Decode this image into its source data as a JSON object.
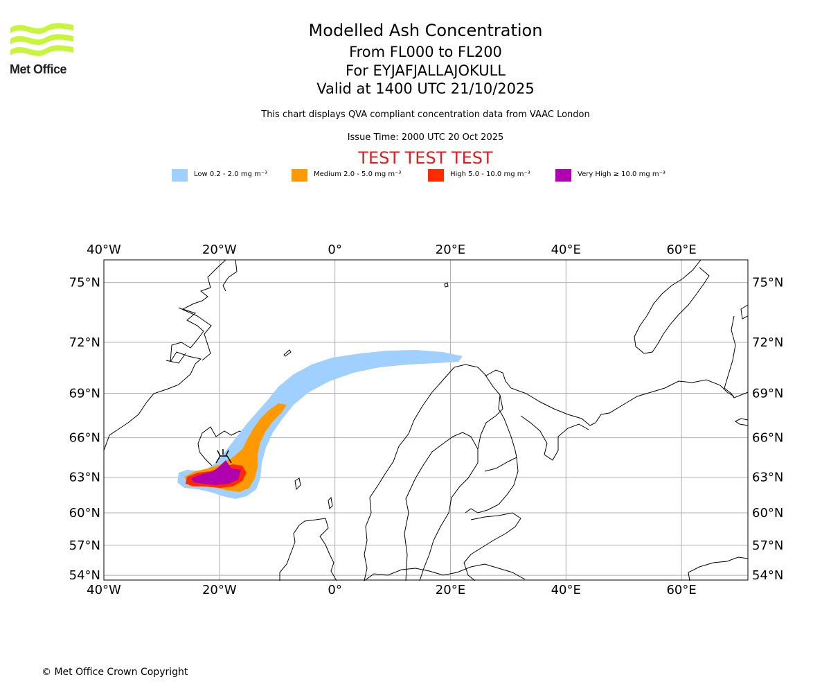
{
  "header": {
    "logo_text": "Met Office",
    "title": "Modelled Ash Concentration",
    "level_range": "From FL000 to FL200",
    "volcano": "For EYJAFJALLAJOKULL",
    "valid_time": "Valid at 1400 UTC 21/10/2025",
    "description": "This chart displays QVA compliant concentration data from VAAC London",
    "issue_time": "Issue Time: 2000 UTC 20 Oct 2025",
    "test_banner": "TEST TEST TEST"
  },
  "legend": [
    {
      "label": "Low 0.2 - 2.0 mg m⁻³",
      "color": "#a0d0ff"
    },
    {
      "label": "Medium 2.0 - 5.0 mg m⁻³",
      "color": "#ff9900"
    },
    {
      "label": "High 5.0 - 10.0 mg m⁻³",
      "color": "#ff2a00"
    },
    {
      "label": "Very High  ≥  10.0 mg m⁻³",
      "color": "#b000b0"
    }
  ],
  "map": {
    "lon_ticks": [
      "40°W",
      "20°W",
      "0°",
      "20°E",
      "40°E",
      "60°E"
    ],
    "lat_ticks": [
      "75°N",
      "72°N",
      "69°N",
      "66°N",
      "63°N",
      "60°N",
      "57°N",
      "54°N"
    ],
    "lon_values": [
      -40,
      -20,
      0,
      20,
      40,
      60
    ],
    "lat_values": [
      75,
      72,
      69,
      66,
      63,
      60,
      57,
      54
    ],
    "lon_range": [
      -40,
      71.5
    ],
    "lat_range": [
      53.5,
      76
    ],
    "gridline_color": "#b0b0b0",
    "volcano_location": {
      "lon": -19.6,
      "lat": 63.6
    }
  },
  "footer": {
    "copyright": "© Met Office Crown Copyright"
  }
}
